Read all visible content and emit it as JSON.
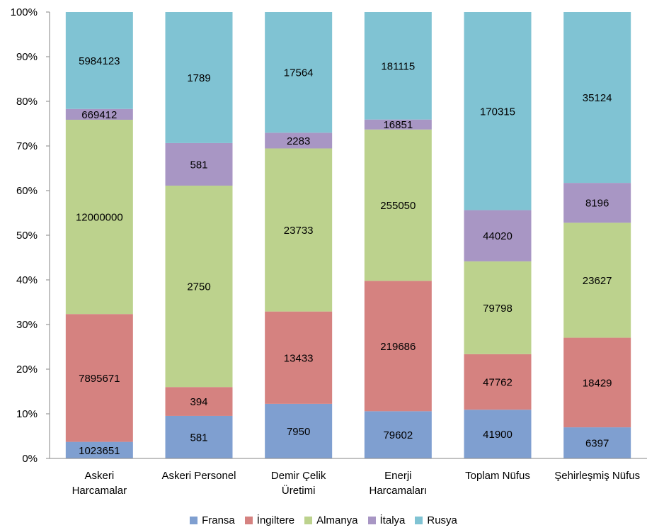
{
  "chart_data": {
    "type": "bar",
    "stacked": true,
    "normalized": true,
    "categories": [
      [
        "Askeri",
        "Harcamalar"
      ],
      [
        "Askeri Personel"
      ],
      [
        "Demir Çelik",
        "Üretimi"
      ],
      [
        "Enerji",
        "Harcamaları"
      ],
      [
        "Toplam Nüfus"
      ],
      [
        "Şehirleşmiş Nüfus"
      ]
    ],
    "series": [
      {
        "name": "Fransa",
        "color": "#7f9fd0",
        "values": [
          1023651,
          581,
          7950,
          79602,
          41900,
          6397
        ]
      },
      {
        "name": "İngiltere",
        "color": "#d58280",
        "values": [
          7895671,
          394,
          13433,
          219686,
          47762,
          18429
        ]
      },
      {
        "name": "Almanya",
        "color": "#bcd28d",
        "values": [
          12000000,
          2750,
          23733,
          255050,
          79798,
          23627
        ]
      },
      {
        "name": "İtalya",
        "color": "#a896c4",
        "values": [
          669412,
          581,
          2283,
          16851,
          44020,
          8196
        ]
      },
      {
        "name": "Rusya",
        "color": "#80c3d3",
        "values": [
          5984123,
          1789,
          17564,
          181115,
          170315,
          35124
        ]
      }
    ],
    "yticks": [
      "0%",
      "10%",
      "20%",
      "30%",
      "40%",
      "50%",
      "60%",
      "70%",
      "80%",
      "90%",
      "100%"
    ],
    "ylim": [
      0,
      100
    ],
    "grid": false,
    "legend_position": "bottom"
  }
}
